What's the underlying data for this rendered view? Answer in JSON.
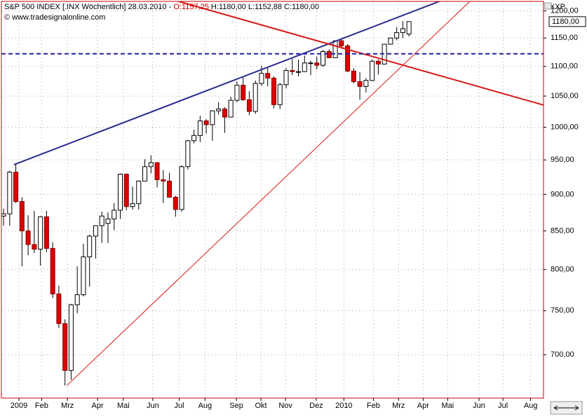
{
  "chart_data": {
    "type": "candlestick",
    "header": {
      "title": "S&P 500 INDEX [.INX Wöchentlich] 28.03.2010 - ",
      "open_text": "O:1157,25",
      "rest_text": "H:1180,00 L:1152,88 C:1180,00",
      "source": "© www.tradesignalonline.com",
      "corner_label": "XXP"
    },
    "log_scale": true,
    "grid": true,
    "up_color": "#ffffff",
    "down_color": "#dd0000",
    "ylim": [
      654,
      1218
    ],
    "yticks": [
      {
        "value": 700,
        "label": "700,00"
      },
      {
        "value": 750,
        "label": "750,00"
      },
      {
        "value": 800,
        "label": "800,00"
      },
      {
        "value": 850,
        "label": "850,00"
      },
      {
        "value": 900,
        "label": "900,00"
      },
      {
        "value": 950,
        "label": "950,00"
      },
      {
        "value": 1000,
        "label": "1000,00"
      },
      {
        "value": 1050,
        "label": "1050,00"
      },
      {
        "value": 1100,
        "label": "1100,00"
      },
      {
        "value": 1150,
        "label": "1150,00"
      },
      {
        "value": 1200,
        "label": "1200,00"
      }
    ],
    "xlim": [
      -0.35,
      87.9
    ],
    "xticks": [
      {
        "value": 2.5,
        "label": "2009"
      },
      {
        "value": 6.2,
        "label": "Feb"
      },
      {
        "value": 10.4,
        "label": "Mrz"
      },
      {
        "value": 15.3,
        "label": "Apr"
      },
      {
        "value": 19.5,
        "label": "Mai"
      },
      {
        "value": 24.3,
        "label": "Jun"
      },
      {
        "value": 28.6,
        "label": "Jul"
      },
      {
        "value": 32.8,
        "label": "Aug"
      },
      {
        "value": 37.9,
        "label": "Sep"
      },
      {
        "value": 41.9,
        "label": "Okt"
      },
      {
        "value": 45.9,
        "label": "Nov"
      },
      {
        "value": 50.9,
        "label": "Dez"
      },
      {
        "value": 55.4,
        "label": "2010"
      },
      {
        "value": 60.2,
        "label": "Feb"
      },
      {
        "value": 64.3,
        "label": "Mrz"
      },
      {
        "value": 68.3,
        "label": "Apr"
      },
      {
        "value": 72.3,
        "label": "Mai"
      },
      {
        "value": 77.4,
        "label": "Jun"
      },
      {
        "value": 81.3,
        "label": "Jul"
      },
      {
        "value": 85.8,
        "label": "Aug"
      }
    ],
    "open": [
      870,
      873,
      932,
      890,
      850,
      832,
      826,
      869,
      827,
      770,
      735,
      683,
      757,
      769,
      816,
      843,
      857,
      860,
      866,
      878,
      929,
      883,
      887,
      919,
      940,
      946,
      921,
      919,
      896,
      879,
      940,
      979,
      987,
      1010,
      1004,
      1026,
      1029,
      1016,
      1043,
      1068,
      1044,
      1025,
      1071,
      1088,
      1080,
      1036,
      1069,
      1093,
      1091,
      1091,
      1106,
      1106,
      1102,
      1126,
      1115,
      1145,
      1136,
      1092,
      1074,
      1066,
      1076,
      1109,
      1104,
      1139,
      1150,
      1160,
      1157.25
    ],
    "high": [
      880,
      934,
      943,
      896,
      871,
      877,
      870,
      877,
      835,
      780,
      740,
      758,
      804,
      833,
      845,
      857,
      876,
      875,
      888,
      930,
      930,
      911,
      920,
      951,
      957,
      946,
      935,
      931,
      898,
      942,
      980,
      996,
      1018,
      1013,
      1027,
      1040,
      1032,
      1049,
      1074,
      1081,
      1058,
      1076,
      1101,
      1097,
      1083,
      1072,
      1097,
      1113,
      1112,
      1119,
      1110,
      1117,
      1129,
      1130,
      1146,
      1150,
      1139,
      1097,
      1090,
      1080,
      1112,
      1112,
      1139,
      1151,
      1170,
      1181,
      1180
    ],
    "low": [
      857,
      857,
      888,
      804,
      818,
      821,
      805,
      822,
      765,
      730,
      667,
      673,
      747,
      767,
      779,
      814,
      834,
      834,
      851,
      866,
      878,
      879,
      879,
      919,
      930,
      910,
      888,
      896,
      869,
      876,
      936,
      975,
      977,
      990,
      979,
      1020,
      991,
      1016,
      1040,
      1042,
      1019,
      1021,
      1067,
      1066,
      1030,
      1029,
      1063,
      1085,
      1083,
      1091,
      1085,
      1095,
      1099,
      1115,
      1115,
      1131,
      1090,
      1071,
      1044,
      1056,
      1075,
      1086,
      1104,
      1138,
      1146,
      1150,
      1152.88
    ],
    "close": [
      873,
      932,
      890,
      850,
      832,
      826,
      869,
      827,
      770,
      735,
      683,
      757,
      769,
      816,
      843,
      857,
      870,
      866,
      878,
      929,
      883,
      887,
      919,
      940,
      946,
      921,
      919,
      896,
      879,
      940,
      979,
      987,
      1010,
      1004,
      1026,
      1029,
      1016,
      1043,
      1068,
      1044,
      1025,
      1071,
      1088,
      1080,
      1036,
      1069,
      1093,
      1091,
      1091,
      1106,
      1106,
      1102,
      1126,
      1115,
      1145,
      1136,
      1092,
      1074,
      1066,
      1076,
      1109,
      1104,
      1139,
      1150,
      1160,
      1167,
      1180
    ],
    "last_price": {
      "value": 1180,
      "label": "1180,00"
    },
    "lines": [
      {
        "color": "#2b2b8f",
        "width": 2,
        "points": [
          [
            1.7,
            943
          ],
          [
            54.2,
            1145
          ]
        ]
      },
      {
        "color": "#d81818",
        "width": 2,
        "points": [
          [
            28.5,
            1218
          ],
          [
            87.3,
            1037
          ]
        ]
      },
      {
        "color": "#d81818",
        "width": 1,
        "points": [
          [
            10.3,
            667
          ],
          [
            54.2,
            998
          ]
        ]
      }
    ],
    "hline": {
      "value": 1122,
      "color": "#2020a0"
    }
  }
}
